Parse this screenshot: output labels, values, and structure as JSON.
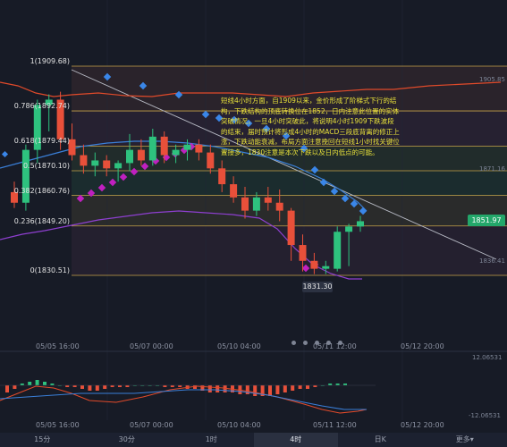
{
  "fib_levels": [
    {
      "label": "1(1909.68)",
      "price": 1909.68,
      "color": "#c8a44a"
    },
    {
      "label": "0.786(1892.74)",
      "price": 1892.74,
      "color": "#c8a44a"
    },
    {
      "label": "0.618(1879.44)",
      "price": 1879.44,
      "color": "#c8a44a"
    },
    {
      "label": "0.5(1870.10)",
      "price": 1870.1,
      "color": "#c8a44a"
    },
    {
      "label": "0.382(1860.76)",
      "price": 1860.76,
      "color": "#c8a44a"
    },
    {
      "label": "0.236(1849.20)",
      "price": 1849.2,
      "color": "#c8a44a"
    },
    {
      "label": "0(1830.51)",
      "price": 1830.51,
      "color": "#c8a44a"
    }
  ],
  "right_axis": {
    "top_label": "1905.85",
    "mid_label": "1871.16",
    "low_label": "1836.41"
  },
  "current_price": "1851.97",
  "low_marker": "1831.30",
  "annotation": "短线4小时方面，自1909以来，金价形成了阶梯式下行的结构，下跌结构的顶底转换位在1852，日内注意此位置的实体突破情况，一旦4小时突破此，将说明4小时1909下跌波段的结束，届时预计将形成4小时的MACD三段底背离的修正上涨，下跌动能衰减，布局方面注意挽回在短线1小时找关键位置接多，1830注意是本次下跌以及日内低点的可能。",
  "x_ticks_main": [
    "05/05 16:00",
    "05/07 00:00",
    "05/10 04:00",
    "05/11 12:00",
    "05/12 20:00"
  ],
  "x_ticks_sub": [
    "05/05 16:00",
    "05/07 00:00",
    "05/10 04:00",
    "05/11 12:00",
    "05/12 20:00"
  ],
  "macd_axis": {
    "top": "12.06531",
    "bottom": "-12.06531"
  },
  "tabs": [
    {
      "label": "15分",
      "active": false
    },
    {
      "label": "30分",
      "active": false
    },
    {
      "label": "1时",
      "active": false
    },
    {
      "label": "4时",
      "active": true
    },
    {
      "label": "日K",
      "active": false
    },
    {
      "label": "更多▾",
      "active": false
    }
  ],
  "colors": {
    "up": "#2ec27e",
    "down": "#e8503a",
    "ma_blue": "#3a7fd8",
    "ma_red": "#e04a2a",
    "ma_purple": "#8e3fd0",
    "sar_blue": "#3a86e8",
    "sar_magenta": "#c020c0",
    "trend": "#b9bcc6"
  },
  "chart_data": {
    "type": "candlestick",
    "ylim": [
      1826,
      1912
    ],
    "candles": [
      {
        "o": 1862,
        "h": 1866,
        "l": 1856,
        "c": 1858
      },
      {
        "o": 1858,
        "h": 1880,
        "l": 1855,
        "c": 1878
      },
      {
        "o": 1878,
        "h": 1897,
        "l": 1873,
        "c": 1895
      },
      {
        "o": 1895,
        "h": 1899,
        "l": 1885,
        "c": 1897
      },
      {
        "o": 1897,
        "h": 1900,
        "l": 1878,
        "c": 1882
      },
      {
        "o": 1882,
        "h": 1888,
        "l": 1874,
        "c": 1876
      },
      {
        "o": 1876,
        "h": 1880,
        "l": 1869,
        "c": 1872
      },
      {
        "o": 1872,
        "h": 1877,
        "l": 1868,
        "c": 1874
      },
      {
        "o": 1874,
        "h": 1876,
        "l": 1868,
        "c": 1871
      },
      {
        "o": 1871,
        "h": 1874,
        "l": 1866,
        "c": 1873
      },
      {
        "o": 1873,
        "h": 1884,
        "l": 1870,
        "c": 1878
      },
      {
        "o": 1878,
        "h": 1882,
        "l": 1872,
        "c": 1874
      },
      {
        "o": 1874,
        "h": 1886,
        "l": 1872,
        "c": 1883
      },
      {
        "o": 1883,
        "h": 1885,
        "l": 1873,
        "c": 1876
      },
      {
        "o": 1876,
        "h": 1880,
        "l": 1873,
        "c": 1878
      },
      {
        "o": 1878,
        "h": 1882,
        "l": 1874,
        "c": 1880
      },
      {
        "o": 1880,
        "h": 1882,
        "l": 1874,
        "c": 1877
      },
      {
        "o": 1877,
        "h": 1880,
        "l": 1869,
        "c": 1871
      },
      {
        "o": 1871,
        "h": 1874,
        "l": 1862,
        "c": 1865
      },
      {
        "o": 1865,
        "h": 1868,
        "l": 1858,
        "c": 1860
      },
      {
        "o": 1860,
        "h": 1864,
        "l": 1852,
        "c": 1855
      },
      {
        "o": 1855,
        "h": 1862,
        "l": 1853,
        "c": 1860
      },
      {
        "o": 1860,
        "h": 1864,
        "l": 1855,
        "c": 1858
      },
      {
        "o": 1858,
        "h": 1863,
        "l": 1851,
        "c": 1855
      },
      {
        "o": 1855,
        "h": 1856,
        "l": 1836,
        "c": 1842
      },
      {
        "o": 1842,
        "h": 1846,
        "l": 1832,
        "c": 1836
      },
      {
        "o": 1836,
        "h": 1839,
        "l": 1831,
        "c": 1833
      },
      {
        "o": 1833,
        "h": 1836,
        "l": 1831,
        "c": 1834
      },
      {
        "o": 1833,
        "h": 1849,
        "l": 1832,
        "c": 1847
      },
      {
        "o": 1847,
        "h": 1850,
        "l": 1834,
        "c": 1849
      },
      {
        "o": 1849,
        "h": 1853,
        "l": 1847,
        "c": 1851
      }
    ]
  }
}
